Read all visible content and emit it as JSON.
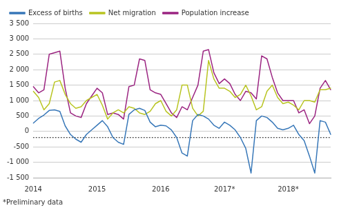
{
  "chart_data": {
    "type": "line",
    "categories": [
      "2014",
      null,
      null,
      null,
      null,
      null,
      null,
      null,
      null,
      null,
      null,
      null,
      "2015",
      null,
      null,
      null,
      null,
      null,
      null,
      null,
      null,
      null,
      null,
      null,
      "2016",
      null,
      null,
      null,
      null,
      null,
      null,
      null,
      null,
      null,
      null,
      null,
      "2017*",
      null,
      null,
      null,
      null,
      null,
      null,
      null,
      null,
      null,
      null,
      null,
      "2018*",
      null,
      null,
      null,
      null,
      null,
      null,
      null,
      null
    ],
    "series": [
      {
        "name": "Excess of births",
        "color": "#3777b8",
        "values": [
          270,
          420,
          530,
          680,
          700,
          650,
          180,
          -100,
          -250,
          -350,
          -100,
          50,
          200,
          350,
          150,
          -200,
          -350,
          -420,
          550,
          700,
          750,
          680,
          300,
          150,
          200,
          180,
          50,
          -200,
          -700,
          -800,
          350,
          550,
          500,
          400,
          200,
          100,
          300,
          200,
          50,
          -200,
          -550,
          -1350,
          350,
          500,
          450,
          300,
          100,
          50,
          100,
          200,
          -100,
          -300,
          -800,
          -1350,
          350,
          300,
          -100
        ]
      },
      {
        "name": "Net migration",
        "color": "#b8c420",
        "values": [
          1300,
          1100,
          700,
          900,
          1600,
          1650,
          1200,
          900,
          750,
          800,
          1000,
          1100,
          1200,
          850,
          400,
          600,
          700,
          600,
          800,
          750,
          600,
          550,
          650,
          900,
          1000,
          650,
          500,
          700,
          1500,
          1500,
          750,
          500,
          650,
          2300,
          1700,
          1400,
          1400,
          1300,
          1100,
          1200,
          1500,
          1150,
          700,
          800,
          1300,
          1500,
          1100,
          900,
          950,
          850,
          700,
          1000,
          1000,
          950,
          1350,
          1350,
          1400
        ]
      },
      {
        "name": "Population increase",
        "color": "#9b2481",
        "values": [
          1450,
          1250,
          1350,
          2500,
          2550,
          2600,
          1400,
          600,
          500,
          450,
          900,
          1150,
          1400,
          1250,
          550,
          600,
          550,
          400,
          1450,
          1500,
          2350,
          2300,
          1350,
          1250,
          1200,
          900,
          600,
          450,
          800,
          700,
          1100,
          1500,
          2600,
          2650,
          1900,
          1550,
          1700,
          1550,
          1200,
          1000,
          1300,
          1250,
          1050,
          2450,
          2350,
          1750,
          1250,
          1000,
          1000,
          1000,
          600,
          700,
          250,
          500,
          1400,
          1650,
          1350
        ]
      }
    ],
    "hlines": [
      {
        "y": -200,
        "color": "#000000",
        "line_style": "dotted"
      }
    ],
    "ylim": [
      -1500,
      3500
    ],
    "yticks": [
      {
        "value": -1500,
        "label": "-1 500"
      },
      {
        "value": -1000,
        "label": "-1 000"
      },
      -500,
      0,
      500,
      {
        "value": 1000,
        "label": "1 000"
      },
      {
        "value": 1500,
        "label": "1 500"
      },
      {
        "value": 2000,
        "label": "2 000"
      },
      {
        "value": 2500,
        "label": "2 500"
      },
      {
        "value": 3000,
        "label": "3 000"
      },
      {
        "value": 3500,
        "label": "3 500"
      }
    ],
    "grid": true,
    "legend": "upper left",
    "footnote": "*Preliminary data"
  }
}
